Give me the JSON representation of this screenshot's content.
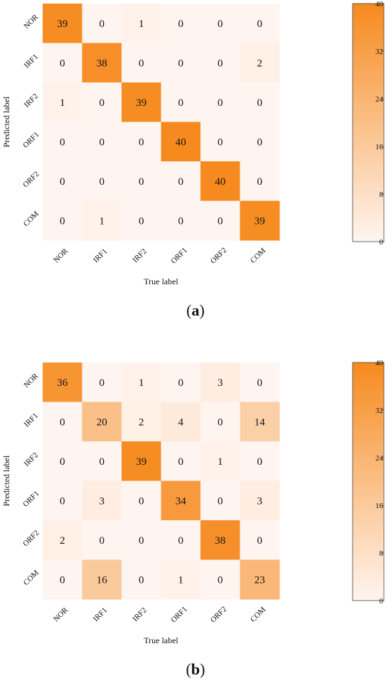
{
  "colors": {
    "low": "#fff5f0",
    "high": "#f68a1e"
  },
  "chart_data": [
    {
      "type": "heatmap",
      "caption_open": "(",
      "caption_letter": "a",
      "caption_close": ")",
      "xlabel": "True label",
      "ylabel": "Predicted label",
      "categories": [
        "NOR",
        "IRF1",
        "IRF2",
        "ORF1",
        "ORF2",
        "COM"
      ],
      "matrix": [
        [
          39,
          0,
          1,
          0,
          0,
          0
        ],
        [
          0,
          38,
          0,
          0,
          0,
          2
        ],
        [
          1,
          0,
          39,
          0,
          0,
          0
        ],
        [
          0,
          0,
          0,
          40,
          0,
          0
        ],
        [
          0,
          0,
          0,
          0,
          40,
          0
        ],
        [
          0,
          1,
          0,
          0,
          0,
          39
        ]
      ],
      "colorbar_ticks": [
        "40",
        "32",
        "24",
        "16",
        "8",
        "0"
      ],
      "colorbar_range": [
        0,
        40
      ]
    },
    {
      "type": "heatmap",
      "caption_open": "(",
      "caption_letter": "b",
      "caption_close": ")",
      "xlabel": "True label",
      "ylabel": "Predicted label",
      "categories": [
        "NOR",
        "IRF1",
        "IRF2",
        "ORF1",
        "ORF2",
        "COM"
      ],
      "matrix": [
        [
          36,
          0,
          1,
          0,
          3,
          0
        ],
        [
          0,
          20,
          2,
          4,
          0,
          14
        ],
        [
          0,
          0,
          39,
          0,
          1,
          0
        ],
        [
          0,
          3,
          0,
          34,
          0,
          3
        ],
        [
          2,
          0,
          0,
          0,
          38,
          0
        ],
        [
          0,
          16,
          0,
          1,
          0,
          23
        ]
      ],
      "colorbar_ticks": [
        "40",
        "32",
        "24",
        "16",
        "8",
        "0"
      ],
      "colorbar_range": [
        0,
        40
      ]
    }
  ]
}
